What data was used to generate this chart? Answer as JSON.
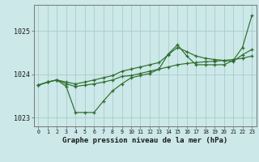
{
  "xlabel": "Graphe pression niveau de la mer (hPa)",
  "ylim": [
    1022.8,
    1025.6
  ],
  "xlim": [
    -0.5,
    23.5
  ],
  "yticks": [
    1023,
    1024,
    1025
  ],
  "xticks": [
    0,
    1,
    2,
    3,
    4,
    5,
    6,
    7,
    8,
    9,
    10,
    11,
    12,
    13,
    14,
    15,
    16,
    17,
    18,
    19,
    20,
    21,
    22,
    23
  ],
  "bg_color": "#cce8e8",
  "grid_color": "#aacccc",
  "line_color": "#2d6e2d",
  "series1": [
    1023.75,
    1023.82,
    1023.87,
    1023.72,
    1023.12,
    1023.12,
    1023.12,
    1023.38,
    1023.62,
    1023.78,
    1023.92,
    1023.97,
    1024.02,
    1024.12,
    1024.47,
    1024.68,
    1024.42,
    1024.22,
    1024.22,
    1024.22,
    1024.22,
    1024.32,
    1024.62,
    1025.35
  ],
  "series2": [
    1023.75,
    1023.82,
    1023.87,
    1023.78,
    1023.72,
    1023.75,
    1023.78,
    1023.82,
    1023.87,
    1023.95,
    1023.97,
    1024.02,
    1024.07,
    1024.12,
    1024.17,
    1024.22,
    1024.25,
    1024.27,
    1024.29,
    1024.3,
    1024.32,
    1024.34,
    1024.37,
    1024.42
  ],
  "series3": [
    1023.75,
    1023.82,
    1023.87,
    1023.82,
    1023.78,
    1023.82,
    1023.87,
    1023.92,
    1023.97,
    1024.07,
    1024.12,
    1024.17,
    1024.22,
    1024.27,
    1024.45,
    1024.62,
    1024.52,
    1024.42,
    1024.37,
    1024.34,
    1024.32,
    1024.3,
    1024.45,
    1024.57
  ]
}
